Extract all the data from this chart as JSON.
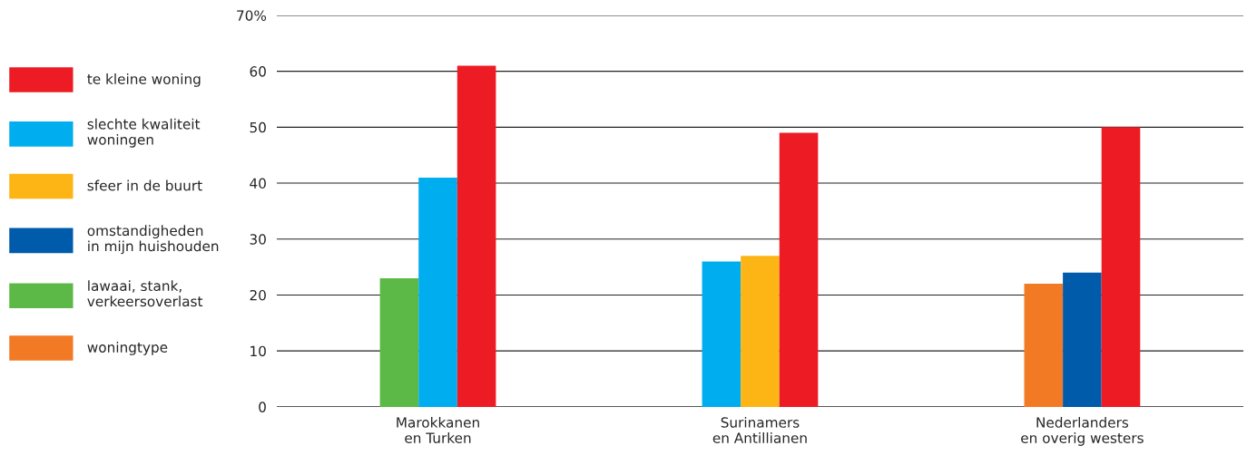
{
  "chart_data": {
    "type": "bar",
    "categories": [
      "Marokkanen\nen Turken",
      "Surinamers\nen Antillianen",
      "Nederlanders\nen overig westers"
    ],
    "series": [
      {
        "name": "te kleine woning",
        "color": "#ed1c24",
        "values": [
          61,
          49,
          50
        ]
      },
      {
        "name": "slechte kwaliteit\nwoningen",
        "color": "#00aeef",
        "values": [
          41,
          26,
          null
        ]
      },
      {
        "name": "sfeer in de buurt",
        "color": "#fdb515",
        "values": [
          null,
          27,
          null
        ]
      },
      {
        "name": "omstandigheden\nin mijn huishouden",
        "color": "#005bab",
        "values": [
          null,
          null,
          24
        ]
      },
      {
        "name": "lawaai, stank,\nverkeersoverlast",
        "color": "#5cb947",
        "values": [
          23,
          null,
          null
        ]
      },
      {
        "name": "woningtype",
        "color": "#f37a25",
        "values": [
          null,
          null,
          22
        ]
      }
    ],
    "ylim": [
      0,
      70
    ],
    "yticks": [
      0,
      10,
      20,
      30,
      40,
      50,
      60,
      {
        "value": 70,
        "label": "70%"
      }
    ],
    "grid": "y",
    "legend": "left"
  }
}
